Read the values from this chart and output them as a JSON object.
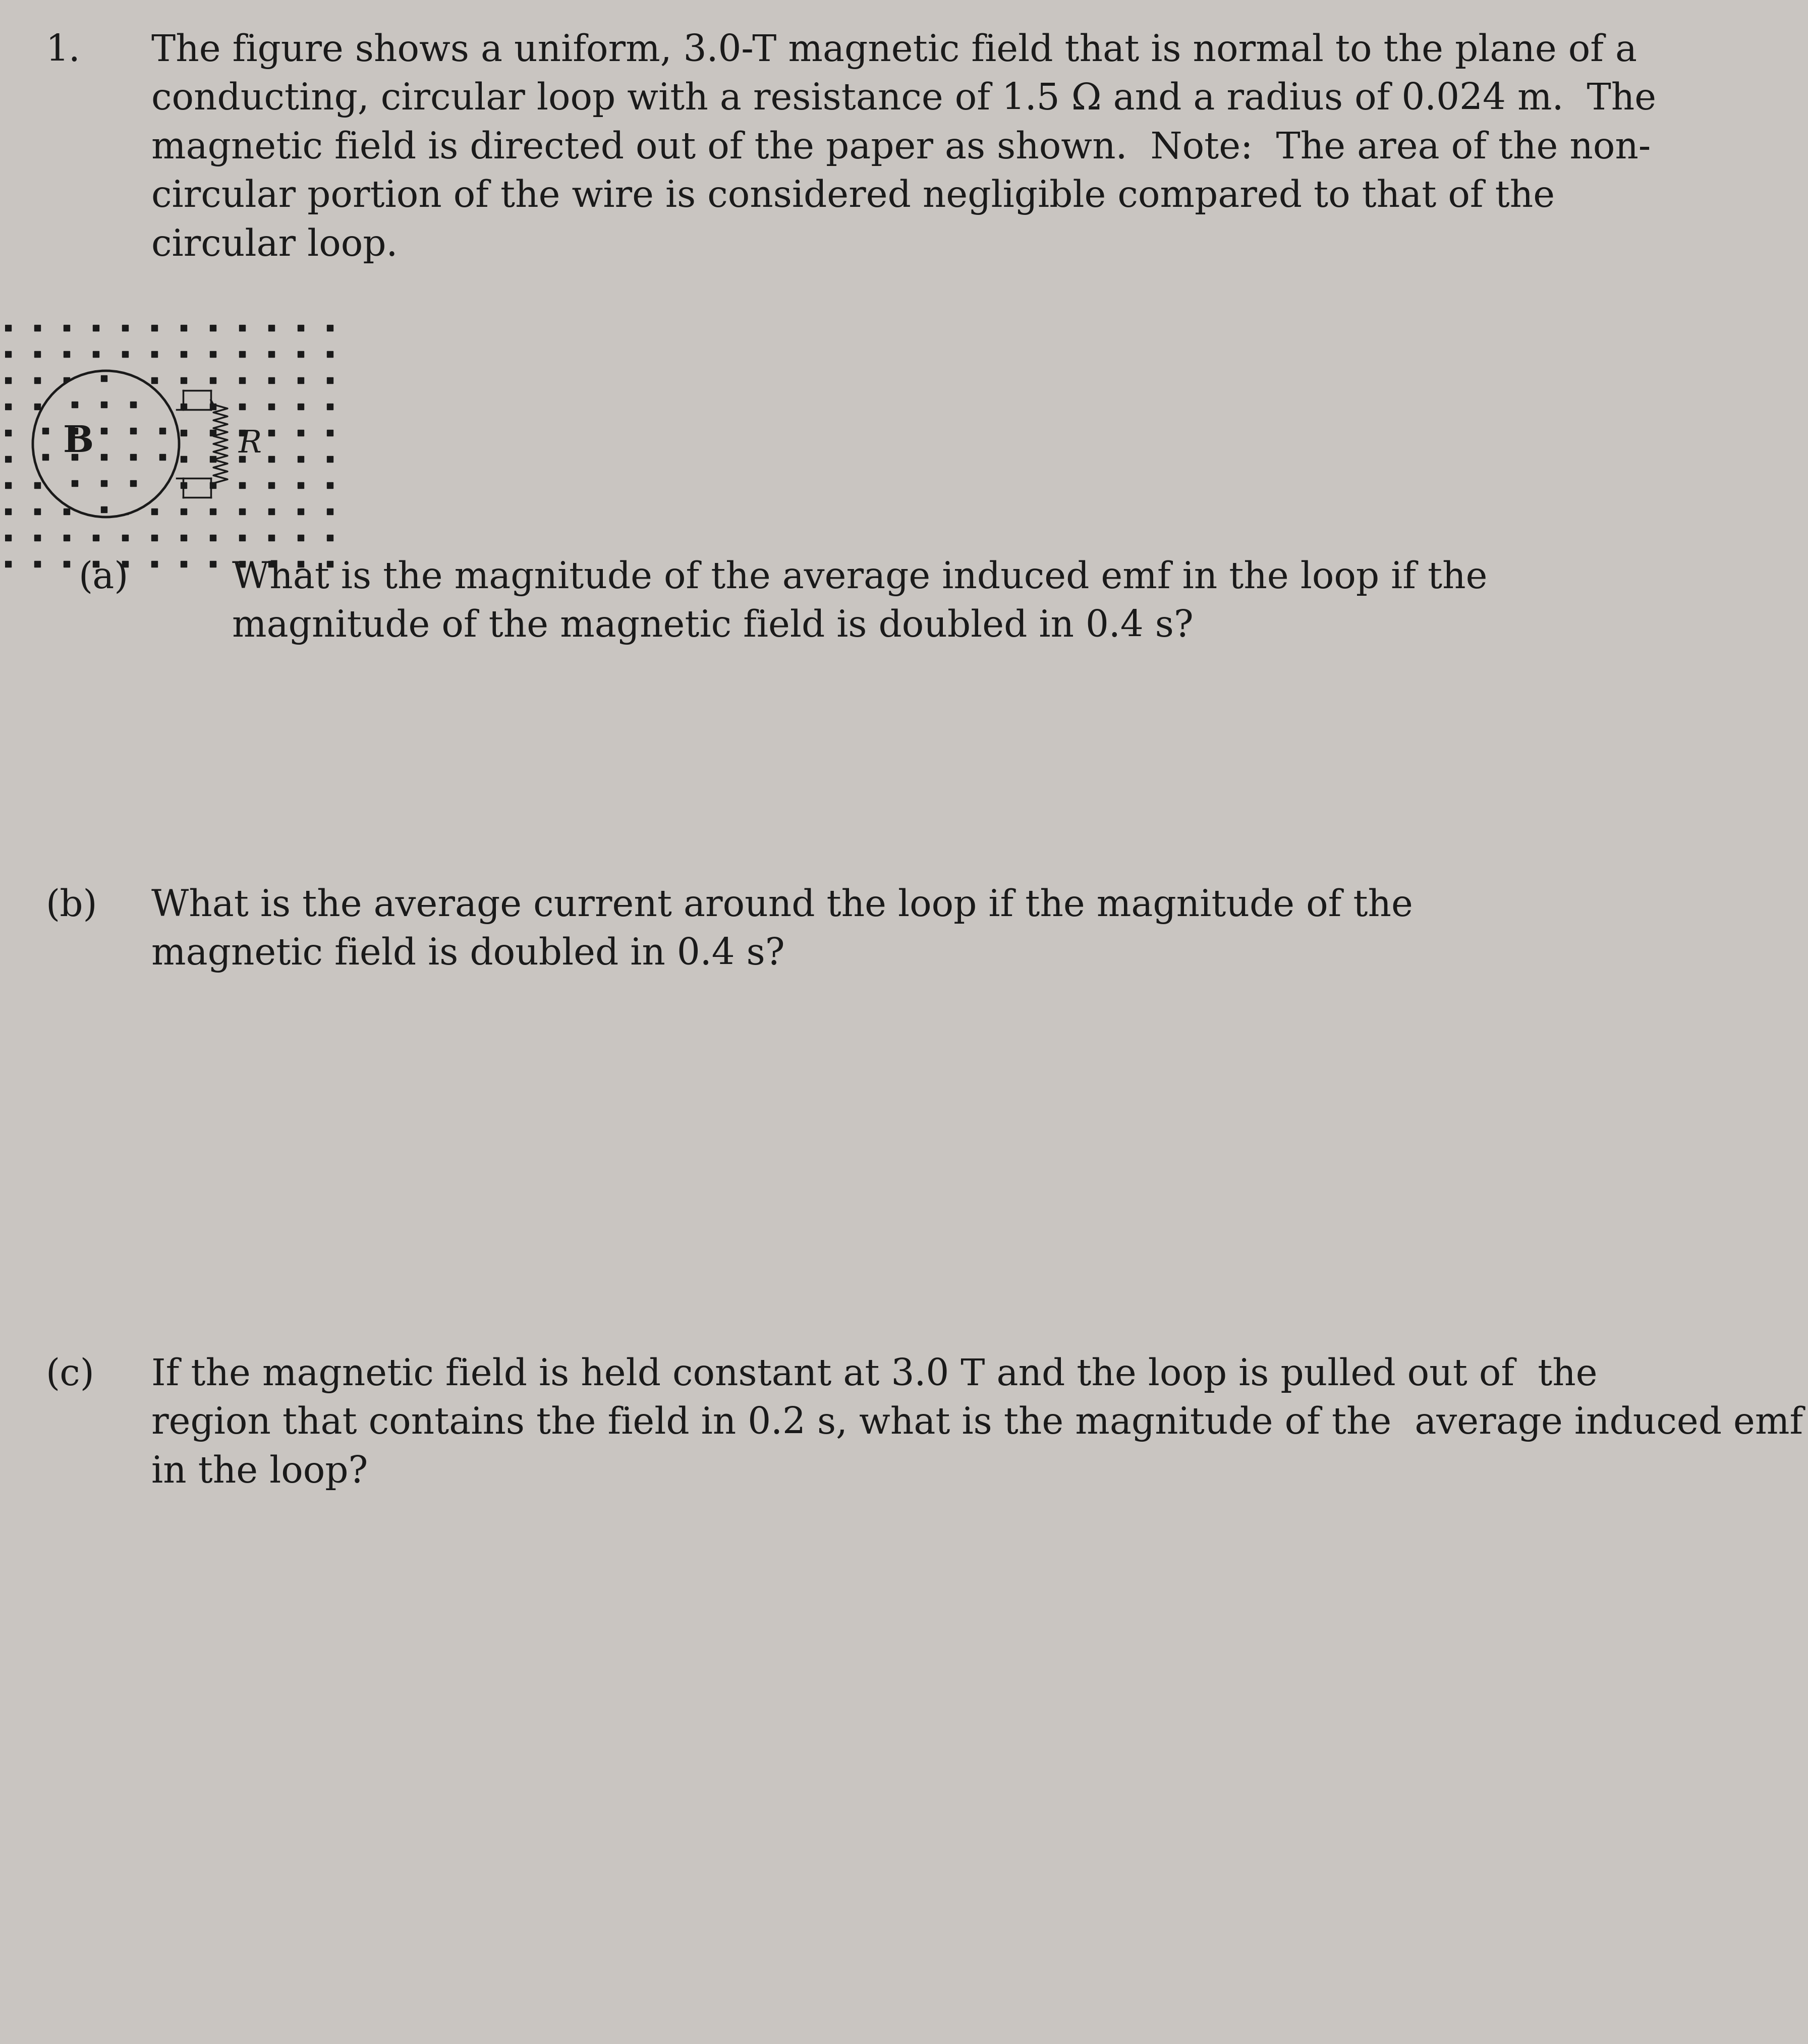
{
  "background_color": "#c9c5c1",
  "text_color": "#1a1a1a",
  "number_label": "1.",
  "problem_text": "The figure shows a uniform, 3.0-T magnetic field that is normal to the plane of a\nconducting, circular loop with a resistance of 1.5 Ω and a radius of 0.024 m.  The\nmagnetic field is directed out of the paper as shown.  Note:  The area of the non-\ncircular portion of the wire is considered negligible compared to that of the\ncircular loop.",
  "part_a_label": "(a)",
  "part_a_text": "What is the magnitude of the average induced emf in the loop if the\nmagnitude of the magnetic field is doubled in 0.4 s?",
  "part_b_label": "(b)",
  "part_b_text": "What is the average current around the loop if the magnitude of the\nmagnetic field is doubled in 0.4 s?",
  "part_c_label": "(c)",
  "part_c_text": "If the magnetic field is held constant at 3.0 T and the loop is pulled out of  the\nregion that contains the field in 0.2 s, what is the magnitude of the  average induced emf\nin the loop?"
}
